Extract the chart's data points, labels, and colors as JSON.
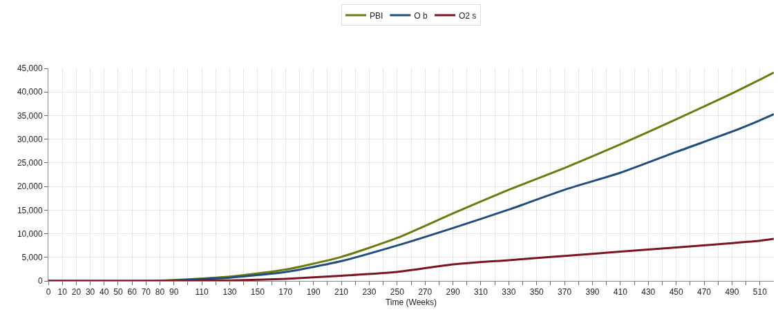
{
  "chart_data": {
    "type": "line",
    "xlabel": "Time (Weeks)",
    "x": [
      0,
      70,
      90,
      110,
      130,
      170,
      210,
      250,
      290,
      330,
      370,
      410,
      450,
      490,
      510,
      520
    ],
    "series": [
      {
        "name": "PBI",
        "color": "#6b7b10",
        "values": [
          0,
          0,
          200,
          500,
          900,
          2400,
          5100,
          9100,
          14300,
          19300,
          23900,
          28900,
          34200,
          39700,
          42600,
          44100
        ]
      },
      {
        "name": "O b",
        "color": "#1f4e7a",
        "values": [
          0,
          0,
          100,
          400,
          700,
          1900,
          4200,
          7500,
          11200,
          15100,
          19300,
          22900,
          27300,
          31600,
          34000,
          35300
        ]
      },
      {
        "name": "O2 s",
        "color": "#7a1520",
        "values": [
          0,
          0,
          0,
          100,
          100,
          450,
          1100,
          1900,
          3500,
          4400,
          5300,
          6200,
          7100,
          8000,
          8500,
          8900
        ]
      }
    ],
    "xlim": [
      0,
      520
    ],
    "xticks": [
      0,
      10,
      20,
      30,
      40,
      50,
      60,
      70,
      80,
      90,
      {
        "value": 100,
        "label": null
      },
      110,
      {
        "value": 120,
        "label": null
      },
      130,
      {
        "value": 140,
        "label": null
      },
      150,
      {
        "value": 160,
        "label": null
      },
      170,
      {
        "value": 180,
        "label": null
      },
      190,
      {
        "value": 200,
        "label": null
      },
      210,
      {
        "value": 220,
        "label": null
      },
      230,
      {
        "value": 240,
        "label": null
      },
      250,
      {
        "value": 260,
        "label": null
      },
      270,
      {
        "value": 280,
        "label": null
      },
      290,
      {
        "value": 300,
        "label": null
      },
      310,
      {
        "value": 320,
        "label": null
      },
      330,
      {
        "value": 340,
        "label": null
      },
      350,
      {
        "value": 360,
        "label": null
      },
      370,
      {
        "value": 380,
        "label": null
      },
      390,
      {
        "value": 400,
        "label": null
      },
      410,
      {
        "value": 420,
        "label": null
      },
      430,
      {
        "value": 440,
        "label": null
      },
      450,
      {
        "value": 460,
        "label": null
      },
      470,
      {
        "value": 480,
        "label": null
      },
      490,
      {
        "value": 500,
        "label": null
      },
      510
    ],
    "ylim": [
      0,
      45000
    ],
    "yticks": [
      {
        "value": 0,
        "label": "0"
      },
      {
        "value": 5000,
        "label": "5,000"
      },
      {
        "value": 10000,
        "label": "10,000"
      },
      {
        "value": 15000,
        "label": "15,000"
      },
      {
        "value": 20000,
        "label": "20,000"
      },
      {
        "value": 25000,
        "label": "25,000"
      },
      {
        "value": 30000,
        "label": "30,000"
      },
      {
        "value": 35000,
        "label": "35,000"
      },
      {
        "value": 40000,
        "label": "40,000"
      },
      {
        "value": 45000,
        "label": "45,000"
      }
    ],
    "grid": true,
    "legend": "top",
    "marker": "none",
    "line_style": "solid"
  }
}
